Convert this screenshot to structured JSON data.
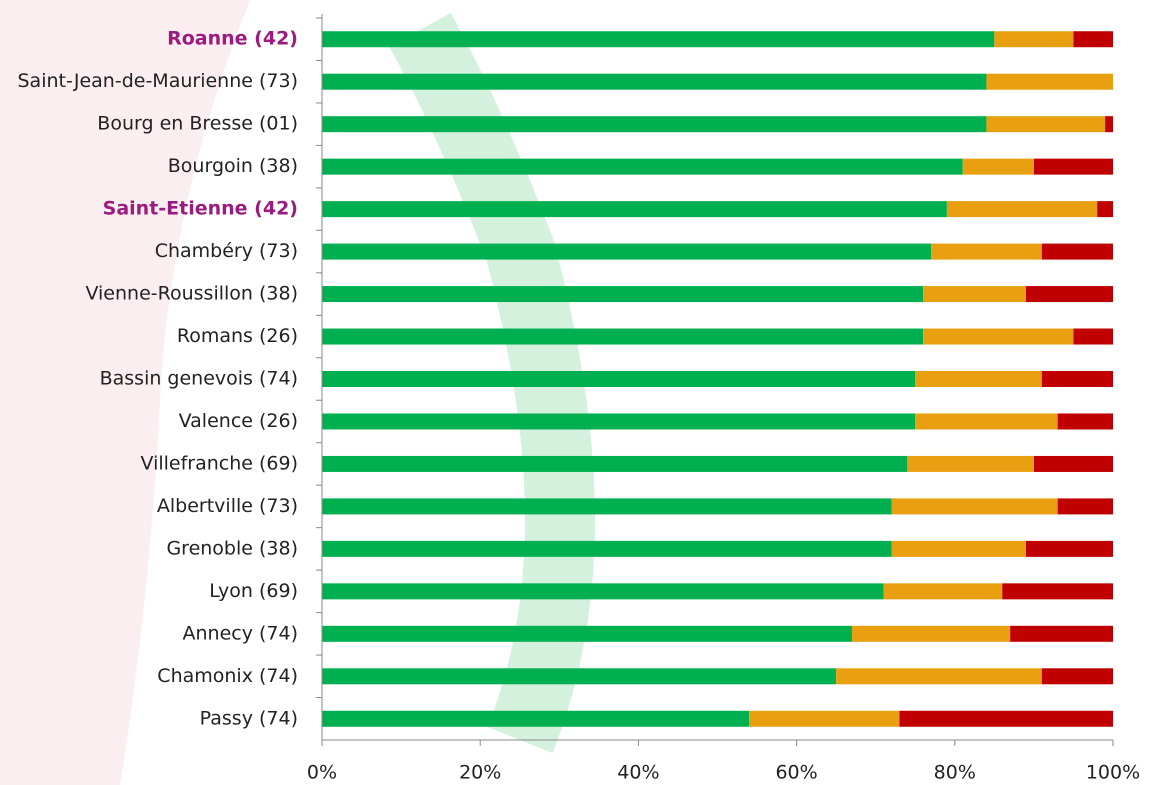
{
  "chart_data": {
    "type": "stacked_bar_horizontal",
    "categories": [
      "Roanne (42)",
      "Saint-Jean-de-Maurienne (73)",
      "Bourg en Bresse (01)",
      "Bourgoin (38)",
      "Saint-Etienne (42)",
      "Chambéry (73)",
      "Vienne-Roussillon (38)",
      "Romans (26)",
      "Bassin genevois (74)",
      "Valence (26)",
      "Villefranche (69)",
      "Albertville (73)",
      "Grenoble (38)",
      "Lyon (69)",
      "Annecy (74)",
      "Chamonix (74)",
      "Passy (74)"
    ],
    "series": [
      {
        "color": "#00b050",
        "values": [
          85,
          84,
          84,
          81,
          79,
          77,
          76,
          76,
          75,
          75,
          74,
          72,
          72,
          71,
          67,
          65,
          54
        ]
      },
      {
        "color": "#e8a010",
        "values": [
          10,
          16,
          15,
          9,
          19,
          14,
          13,
          19,
          16,
          18,
          16,
          21,
          17,
          15,
          20,
          26,
          19
        ]
      },
      {
        "color": "#c00000",
        "values": [
          5,
          0,
          1,
          10,
          2,
          9,
          11,
          5,
          9,
          7,
          10,
          7,
          11,
          14,
          13,
          9,
          27
        ]
      }
    ],
    "highlighted_categories": [
      0,
      4
    ],
    "highlight_color": "#9b1b7e",
    "xlim": [
      0,
      100
    ],
    "xticks": [
      {
        "value": 0,
        "label": "0%"
      },
      {
        "value": 20,
        "label": "20%"
      },
      {
        "value": 40,
        "label": "40%"
      },
      {
        "value": 60,
        "label": "60%"
      },
      {
        "value": 80,
        "label": "80%"
      },
      {
        "value": 100,
        "label": "100%"
      }
    ],
    "grid": false
  }
}
